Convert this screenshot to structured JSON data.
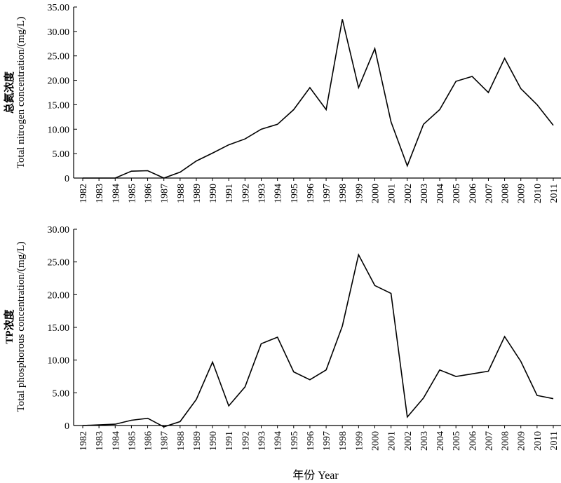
{
  "chart_data": [
    {
      "type": "line",
      "title": "",
      "ylabel_cn": "总氮浓度",
      "ylabel_en": "Total  nitrogen concentration/(mg/L)",
      "ylim": [
        0,
        35
      ],
      "yticks": [
        "0",
        "5.00",
        "10.00",
        "15.00",
        "20.00",
        "25.00",
        "30.00",
        "35.00"
      ],
      "categories": [
        "1982",
        "1983",
        "1984",
        "1985",
        "1986",
        "1987",
        "1988",
        "1989",
        "1990",
        "1991",
        "1992",
        "1993",
        "1994",
        "1995",
        "1996",
        "1997",
        "1998",
        "1999",
        "2000",
        "2001",
        "2002",
        "2003",
        "2004",
        "2005",
        "2006",
        "2007",
        "2008",
        "2009",
        "2010",
        "2011"
      ],
      "series": [
        {
          "values": [
            0,
            0,
            0,
            1.4,
            1.5,
            0,
            1.2,
            3.5,
            5.1,
            6.8,
            8,
            10,
            11,
            14,
            18.5,
            14,
            32.5,
            18.5,
            26.5,
            11.5,
            2.5,
            11,
            14,
            19.8,
            20.8,
            17.5,
            24.5,
            18.3,
            15,
            10.8
          ]
        }
      ],
      "grid": false,
      "line_color": "#000000"
    },
    {
      "type": "line",
      "title": "",
      "ylabel_cn": "TP浓度",
      "ylabel_en": "Total phosphorous concentration/(mg/L)",
      "ylim": [
        0,
        30
      ],
      "yticks": [
        "0",
        "5.00",
        "10.00",
        "15.00",
        "20.00",
        "25.00",
        "30.00"
      ],
      "categories": [
        "1982",
        "1983",
        "1984",
        "1985",
        "1986",
        "1987",
        "1988",
        "1989",
        "1990",
        "1991",
        "1992",
        "1993",
        "1994",
        "1995",
        "1996",
        "1997",
        "1998",
        "1999",
        "2000",
        "2001",
        "2002",
        "2003",
        "2004",
        "2005",
        "2006",
        "2007",
        "2008",
        "2009",
        "2010",
        "2011"
      ],
      "series": [
        {
          "values": [
            0,
            0.1,
            0.2,
            0.8,
            1.1,
            -0.2,
            0.6,
            4,
            9.7,
            3,
            5.9,
            12.5,
            13.5,
            8.2,
            7,
            8.5,
            15.2,
            26.1,
            21.4,
            20.2,
            1.3,
            4.2,
            8.5,
            7.5,
            7.9,
            8.3,
            13.6,
            9.8,
            4.6,
            4.1
          ]
        }
      ],
      "grid": false,
      "line_color": "#000000"
    }
  ],
  "xlabel": "年份 Year"
}
